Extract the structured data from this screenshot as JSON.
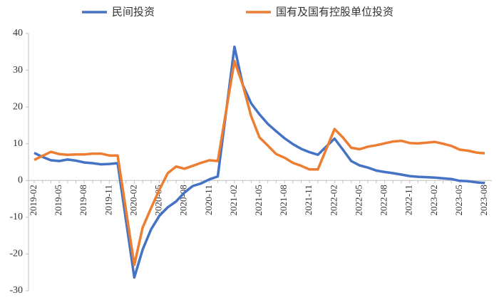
{
  "chart_data": {
    "type": "line",
    "categories": [
      "2019-02",
      null,
      null,
      "2019-05",
      null,
      null,
      "2019-08",
      null,
      null,
      "2019-11",
      null,
      null,
      "2020-02",
      null,
      null,
      "2020-05",
      null,
      null,
      "2020-08",
      null,
      null,
      "2020-11",
      null,
      null,
      "2021-02",
      null,
      null,
      "2021-05",
      null,
      null,
      "2021-08",
      null,
      null,
      "2021-11",
      null,
      null,
      "2022-02",
      null,
      null,
      "2022-05",
      null,
      null,
      "2022-08",
      null,
      null,
      "2022-11",
      null,
      null,
      "2023-02",
      null,
      null,
      "2023-05",
      null,
      null,
      "2023-08"
    ],
    "series": [
      {
        "name": "民间投资",
        "color": "#4472c4",
        "values": [
          7.5,
          6.4,
          5.5,
          5.3,
          5.7,
          5.4,
          4.9,
          4.7,
          4.4,
          4.5,
          4.7,
          -10.8,
          -26.4,
          -18.8,
          -13.3,
          -9.6,
          -7.3,
          -5.7,
          -3.3,
          -1.5,
          -0.8,
          0.3,
          1.1,
          18.7,
          36.4,
          26.0,
          21.0,
          18.0,
          15.4,
          13.4,
          11.5,
          9.9,
          8.6,
          7.7,
          7.0,
          9.2,
          11.4,
          8.4,
          5.3,
          4.1,
          3.5,
          2.7,
          2.3,
          2.0,
          1.6,
          1.2,
          1.0,
          0.9,
          0.8,
          0.6,
          0.4,
          -0.1,
          -0.2,
          -0.5,
          -0.7
        ]
      },
      {
        "name": "国有及国有控股单位投资",
        "color": "#ed7d31",
        "values": [
          5.6,
          6.7,
          7.8,
          7.2,
          7.0,
          7.1,
          7.1,
          7.3,
          7.3,
          6.8,
          6.8,
          -8.0,
          -23.0,
          -12.8,
          -7.5,
          -2.5,
          2.0,
          3.8,
          3.2,
          4.0,
          4.8,
          5.5,
          5.3,
          18.9,
          32.5,
          26.0,
          17.5,
          11.7,
          9.5,
          7.2,
          6.2,
          4.8,
          4.0,
          3.0,
          3.0,
          8.5,
          14.0,
          11.7,
          8.9,
          8.5,
          9.2,
          9.6,
          10.1,
          10.6,
          10.8,
          10.2,
          10.1,
          10.3,
          10.5,
          10.0,
          9.4,
          8.4,
          8.1,
          7.6,
          7.4
        ]
      }
    ],
    "ylim": [
      -30,
      40
    ],
    "yticks": [
      -30,
      -20,
      -10,
      0,
      10,
      20,
      30,
      40
    ],
    "grid": false,
    "legend": "top"
  }
}
